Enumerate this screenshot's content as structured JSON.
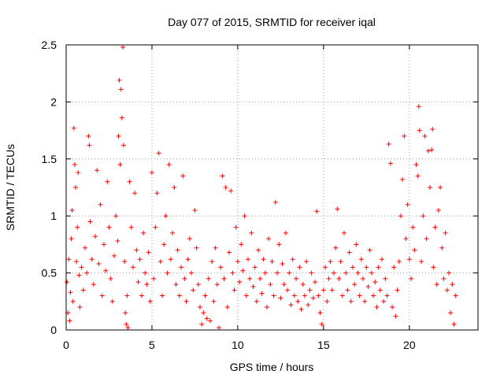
{
  "chart_data": {
    "type": "scatter",
    "title": "Day 077 of 2015, SRMTID for receiver iqal",
    "xlabel": "GPS time / hours",
    "ylabel": "SRMTID / TECUs",
    "xlim": [
      0,
      24
    ],
    "ylim": [
      0,
      2.5
    ],
    "x_ticks": [
      0,
      5,
      10,
      15,
      20
    ],
    "x_tick_labels": [
      "0",
      "5",
      "10",
      "15",
      "20"
    ],
    "y_ticks": [
      0,
      0.5,
      1,
      1.5,
      2,
      2.5
    ],
    "y_tick_labels": [
      "0",
      "0.5",
      "1",
      "1.5",
      "2",
      "2.5"
    ],
    "grid": true,
    "marker": "+",
    "color": "#ff0000",
    "series": [
      {
        "name": "SRMTID",
        "points": [
          [
            0.05,
            0.42
          ],
          [
            0.1,
            0.15
          ],
          [
            0.15,
            0.62
          ],
          [
            0.2,
            0.08
          ],
          [
            0.25,
            0.33
          ],
          [
            0.3,
            0.8
          ],
          [
            0.35,
            1.05
          ],
          [
            0.4,
            0.25
          ],
          [
            0.45,
            1.77
          ],
          [
            0.5,
            1.45
          ],
          [
            0.55,
            1.25
          ],
          [
            0.6,
            0.6
          ],
          [
            0.65,
            0.9
          ],
          [
            0.7,
            1.38
          ],
          [
            0.75,
            0.48
          ],
          [
            0.8,
            0.2
          ],
          [
            0.9,
            0.55
          ],
          [
            1.0,
            0.35
          ],
          [
            1.1,
            0.72
          ],
          [
            1.2,
            0.5
          ],
          [
            1.3,
            1.7
          ],
          [
            1.35,
            1.62
          ],
          [
            1.4,
            0.95
          ],
          [
            1.5,
            0.62
          ],
          [
            1.6,
            0.4
          ],
          [
            1.7,
            0.82
          ],
          [
            1.8,
            1.4
          ],
          [
            1.9,
            0.58
          ],
          [
            2.0,
            1.1
          ],
          [
            2.1,
            0.3
          ],
          [
            2.2,
            0.75
          ],
          [
            2.3,
            0.52
          ],
          [
            2.4,
            1.3
          ],
          [
            2.5,
            0.9
          ],
          [
            2.6,
            0.45
          ],
          [
            2.7,
            0.25
          ],
          [
            2.8,
            0.65
          ],
          [
            2.9,
            1.0
          ],
          [
            3.0,
            0.78
          ],
          [
            3.05,
            1.7
          ],
          [
            3.1,
            2.19
          ],
          [
            3.15,
            1.45
          ],
          [
            3.2,
            2.11
          ],
          [
            3.25,
            1.86
          ],
          [
            3.3,
            2.48
          ],
          [
            3.35,
            1.62
          ],
          [
            3.4,
            0.6
          ],
          [
            3.45,
            0.15
          ],
          [
            3.5,
            0.05
          ],
          [
            3.55,
            0.3
          ],
          [
            3.6,
            0.02
          ],
          [
            3.7,
            1.3
          ],
          [
            3.8,
            0.9
          ],
          [
            3.9,
            0.55
          ],
          [
            4.0,
            1.2
          ],
          [
            4.1,
            0.7
          ],
          [
            4.2,
            0.42
          ],
          [
            4.3,
            0.62
          ],
          [
            4.4,
            0.3
          ],
          [
            4.5,
            0.85
          ],
          [
            4.6,
            0.5
          ],
          [
            4.7,
            0.4
          ],
          [
            4.8,
            0.68
          ],
          [
            4.9,
            0.25
          ],
          [
            5.0,
            1.38
          ],
          [
            5.1,
            0.45
          ],
          [
            5.2,
            0.9
          ],
          [
            5.3,
            1.2
          ],
          [
            5.4,
            1.55
          ],
          [
            5.5,
            0.6
          ],
          [
            5.6,
            0.3
          ],
          [
            5.7,
            0.75
          ],
          [
            5.8,
            1.0
          ],
          [
            5.9,
            0.5
          ],
          [
            6.0,
            1.45
          ],
          [
            6.1,
            0.62
          ],
          [
            6.2,
            0.85
          ],
          [
            6.3,
            1.25
          ],
          [
            6.4,
            0.4
          ],
          [
            6.5,
            0.7
          ],
          [
            6.6,
            0.3
          ],
          [
            6.7,
            0.55
          ],
          [
            6.8,
            1.35
          ],
          [
            6.9,
            0.45
          ],
          [
            7.0,
            0.25
          ],
          [
            7.1,
            0.62
          ],
          [
            7.2,
            0.8
          ],
          [
            7.3,
            0.5
          ],
          [
            7.4,
            0.35
          ],
          [
            7.5,
            1.05
          ],
          [
            7.6,
            0.72
          ],
          [
            7.7,
            0.4
          ],
          [
            7.8,
            0.2
          ],
          [
            7.9,
            0.05
          ],
          [
            8.0,
            0.15
          ],
          [
            8.1,
            0.3
          ],
          [
            8.2,
            0.1
          ],
          [
            8.3,
            0.45
          ],
          [
            8.4,
            0.08
          ],
          [
            8.5,
            0.6
          ],
          [
            8.6,
            0.25
          ],
          [
            8.7,
            0.72
          ],
          [
            8.8,
            0.4
          ],
          [
            8.9,
            0.02
          ],
          [
            9.0,
            0.55
          ],
          [
            9.1,
            1.35
          ],
          [
            9.2,
            0.45
          ],
          [
            9.3,
            1.25
          ],
          [
            9.4,
            0.2
          ],
          [
            9.5,
            0.68
          ],
          [
            9.6,
            1.22
          ],
          [
            9.7,
            0.5
          ],
          [
            9.8,
            0.35
          ],
          [
            9.9,
            0.9
          ],
          [
            10.0,
            0.6
          ],
          [
            10.1,
            0.42
          ],
          [
            10.2,
            0.75
          ],
          [
            10.3,
            0.52
          ],
          [
            10.4,
            1.0
          ],
          [
            10.5,
            0.3
          ],
          [
            10.6,
            0.62
          ],
          [
            10.7,
            0.45
          ],
          [
            10.8,
            0.85
          ],
          [
            10.9,
            0.38
          ],
          [
            11.0,
            0.55
          ],
          [
            11.1,
            0.25
          ],
          [
            11.2,
            0.7
          ],
          [
            11.3,
            0.45
          ],
          [
            11.4,
            0.32
          ],
          [
            11.5,
            0.62
          ],
          [
            11.6,
            0.5
          ],
          [
            11.7,
            0.2
          ],
          [
            11.8,
            0.8
          ],
          [
            11.9,
            0.4
          ],
          [
            12.0,
            0.6
          ],
          [
            12.1,
            0.3
          ],
          [
            12.2,
            1.12
          ],
          [
            12.3,
            0.5
          ],
          [
            12.4,
            0.75
          ],
          [
            12.5,
            0.28
          ],
          [
            12.6,
            0.58
          ],
          [
            12.7,
            0.4
          ],
          [
            12.8,
            0.85
          ],
          [
            12.9,
            0.35
          ],
          [
            13.0,
            0.5
          ],
          [
            13.1,
            0.22
          ],
          [
            13.2,
            0.62
          ],
          [
            13.3,
            0.3
          ],
          [
            13.4,
            0.45
          ],
          [
            13.5,
            0.25
          ],
          [
            13.6,
            0.55
          ],
          [
            13.7,
            0.18
          ],
          [
            13.8,
            0.4
          ],
          [
            13.9,
            0.3
          ],
          [
            14.0,
            0.6
          ],
          [
            14.1,
            0.22
          ],
          [
            14.2,
            0.35
          ],
          [
            14.3,
            0.5
          ],
          [
            14.4,
            0.28
          ],
          [
            14.5,
            0.42
          ],
          [
            14.6,
            1.04
          ],
          [
            14.7,
            0.3
          ],
          [
            14.8,
            0.15
          ],
          [
            14.9,
            0.05
          ],
          [
            15.0,
            0.35
          ],
          [
            15.1,
            0.55
          ],
          [
            15.2,
            0.25
          ],
          [
            15.3,
            0.45
          ],
          [
            15.4,
            0.6
          ],
          [
            15.5,
            0.35
          ],
          [
            15.6,
            0.5
          ],
          [
            15.7,
            0.72
          ],
          [
            15.8,
            1.06
          ],
          [
            15.9,
            0.45
          ],
          [
            16.0,
            0.6
          ],
          [
            16.1,
            0.3
          ],
          [
            16.2,
            0.85
          ],
          [
            16.3,
            0.5
          ],
          [
            16.4,
            0.35
          ],
          [
            16.5,
            0.68
          ],
          [
            16.6,
            0.25
          ],
          [
            16.7,
            0.55
          ],
          [
            16.8,
            0.4
          ],
          [
            16.9,
            0.75
          ],
          [
            17.0,
            0.5
          ],
          [
            17.1,
            0.3
          ],
          [
            17.2,
            0.62
          ],
          [
            17.3,
            0.45
          ],
          [
            17.4,
            0.25
          ],
          [
            17.5,
            0.55
          ],
          [
            17.6,
            0.38
          ],
          [
            17.7,
            0.7
          ],
          [
            17.8,
            0.5
          ],
          [
            17.9,
            0.3
          ],
          [
            18.0,
            0.42
          ],
          [
            18.1,
            0.2
          ],
          [
            18.2,
            0.55
          ],
          [
            18.3,
            0.35
          ],
          [
            18.4,
            0.62
          ],
          [
            18.5,
            0.25
          ],
          [
            18.6,
            0.45
          ],
          [
            18.7,
            0.3
          ],
          [
            18.8,
            1.63
          ],
          [
            18.9,
            1.46
          ],
          [
            19.0,
            0.2
          ],
          [
            19.1,
            0.55
          ],
          [
            19.2,
            0.12
          ],
          [
            19.3,
            0.35
          ],
          [
            19.4,
            0.6
          ],
          [
            19.5,
            1.0
          ],
          [
            19.6,
            1.32
          ],
          [
            19.7,
            1.7
          ],
          [
            19.8,
            0.8
          ],
          [
            19.9,
            1.1
          ],
          [
            20.0,
            0.62
          ],
          [
            20.1,
            0.45
          ],
          [
            20.2,
            0.9
          ],
          [
            20.3,
            0.7
          ],
          [
            20.4,
            1.45
          ],
          [
            20.5,
            1.35
          ],
          [
            20.55,
            1.96
          ],
          [
            20.6,
            1.75
          ],
          [
            20.7,
            0.6
          ],
          [
            20.8,
            1.0
          ],
          [
            20.9,
            1.7
          ],
          [
            21.0,
            0.8
          ],
          [
            21.1,
            1.57
          ],
          [
            21.2,
            1.25
          ],
          [
            21.3,
            1.58
          ],
          [
            21.35,
            1.76
          ],
          [
            21.4,
            0.55
          ],
          [
            21.5,
            0.9
          ],
          [
            21.6,
            0.4
          ],
          [
            21.7,
            1.05
          ],
          [
            21.8,
            1.25
          ],
          [
            21.9,
            0.72
          ],
          [
            22.0,
            0.45
          ],
          [
            22.1,
            0.85
          ],
          [
            22.2,
            0.35
          ],
          [
            22.3,
            0.5
          ],
          [
            22.4,
            0.15
          ],
          [
            22.5,
            0.4
          ],
          [
            22.6,
            0.05
          ],
          [
            22.7,
            0.3
          ]
        ]
      }
    ]
  }
}
